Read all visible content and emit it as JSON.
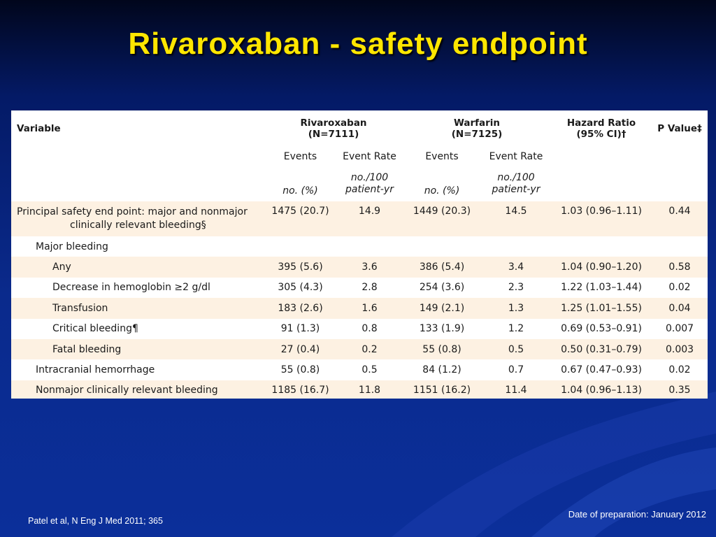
{
  "slide": {
    "title": "Rivaroxaban - safety endpoint",
    "citation": "Patel et al, N Eng J Med 2011; 365",
    "preparation_date": "Date of preparation: January 2012"
  },
  "table": {
    "header": {
      "variable": "Variable",
      "rivaroxaban": "Rivaroxaban",
      "rivaroxaban_n": "(N=7111)",
      "warfarin": "Warfarin",
      "warfarin_n": "(N=7125)",
      "hazard_ratio": "Hazard Ratio",
      "hazard_ratio_ci": "(95% CI)†",
      "p_value": "P Value‡",
      "events": "Events",
      "event_rate": "Event Rate",
      "events_unit": "no. (%)",
      "rate_unit_1": "no./100",
      "rate_unit_2": "patient-yr"
    },
    "rows": [
      {
        "label_1": "Principal safety end point: major and nonmajor",
        "label_2": "clinically relevant bleeding§",
        "riva_events": "1475 (20.7)",
        "riva_rate": "14.9",
        "warf_events": "1449 (20.3)",
        "warf_rate": "14.5",
        "hr": "1.03 (0.96–1.11)",
        "p": "0.44"
      },
      {
        "label": "Major bleeding"
      },
      {
        "label": "Any",
        "riva_events": "395 (5.6)",
        "riva_rate": "3.6",
        "warf_events": "386 (5.4)",
        "warf_rate": "3.4",
        "hr": "1.04 (0.90–1.20)",
        "p": "0.58"
      },
      {
        "label": "Decrease in hemoglobin ≥2 g/dl",
        "riva_events": "305 (4.3)",
        "riva_rate": "2.8",
        "warf_events": "254 (3.6)",
        "warf_rate": "2.3",
        "hr": "1.22 (1.03–1.44)",
        "p": "0.02"
      },
      {
        "label": "Transfusion",
        "riva_events": "183 (2.6)",
        "riva_rate": "1.6",
        "warf_events": "149 (2.1)",
        "warf_rate": "1.3",
        "hr": "1.25 (1.01–1.55)",
        "p": "0.04"
      },
      {
        "label": "Critical bleeding¶",
        "riva_events": "91 (1.3)",
        "riva_rate": "0.8",
        "warf_events": "133 (1.9)",
        "warf_rate": "1.2",
        "hr": "0.69 (0.53–0.91)",
        "p": "0.007"
      },
      {
        "label": "Fatal bleeding",
        "riva_events": "27 (0.4)",
        "riva_rate": "0.2",
        "warf_events": "55 (0.8)",
        "warf_rate": "0.5",
        "hr": "0.50 (0.31–0.79)",
        "p": "0.003"
      },
      {
        "label": "Intracranial hemorrhage",
        "riva_events": "55 (0.8)",
        "riva_rate": "0.5",
        "warf_events": "84 (1.2)",
        "warf_rate": "0.7",
        "hr": "0.67 (0.47–0.93)",
        "p": "0.02"
      },
      {
        "label": "Nonmajor clinically relevant bleeding",
        "riva_events": "1185 (16.7)",
        "riva_rate": "11.8",
        "warf_events": "1151 (16.2)",
        "warf_rate": "11.4",
        "hr": "1.04 (0.96–1.13)",
        "p": "0.35"
      }
    ]
  },
  "colors": {
    "title": "#ffe600",
    "background": "#0a2a8c",
    "row_shade": "#fdf1e2",
    "text": "#1a1a1a"
  }
}
